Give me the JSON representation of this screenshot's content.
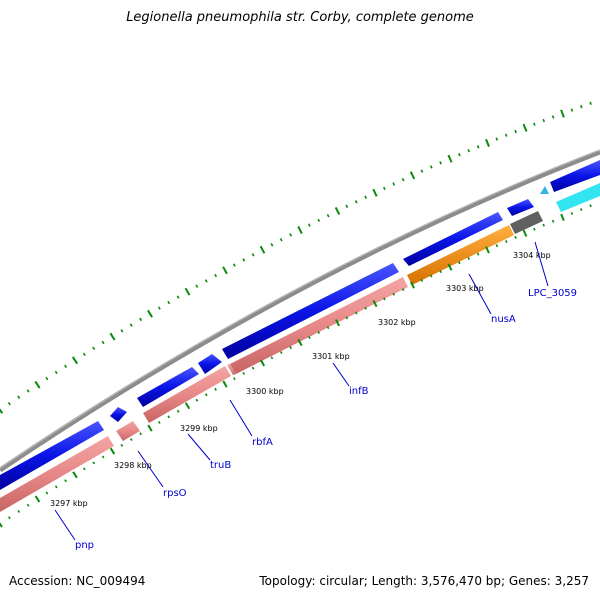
{
  "title": "Legionella pneumophila str. Corby, complete genome",
  "footer": {
    "accession": "Accession: NC_009494",
    "summary": "Topology: circular; Length: 3,576,470 bp; Genes: 3,257"
  },
  "scale": {
    "ticks": [
      "3297 kbp",
      "3298 kbp",
      "3299 kbp",
      "3300 kbp",
      "3301 kbp",
      "3302 kbp",
      "3303 kbp",
      "3304 kbp"
    ]
  },
  "genes": [
    "pnp",
    "rpsO",
    "truB",
    "rbfA",
    "infB",
    "nusA",
    "LPC_3059"
  ],
  "colors": {
    "backbone": "#8c8c8c",
    "cds_forward": "#0a14e6",
    "gene_feature": "#e88888",
    "orange_feature": "#f08a00",
    "gray_feature": "#606060",
    "cyan_feature": "#33e5f0",
    "tick_mark": "#0a8a0a",
    "gene_label": "#0000cc"
  }
}
